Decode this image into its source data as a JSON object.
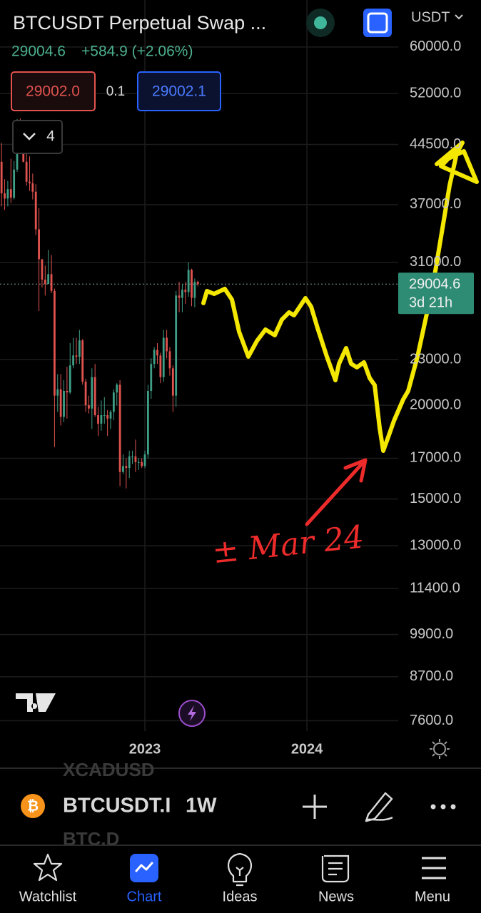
{
  "header": {
    "title": "BTCUSDT Perpetual Swap ...",
    "last_price": "29004.6",
    "change": "+584.9 (+2.06%)",
    "bid": "29002.0",
    "spread": "0.1",
    "ask": "29002.1",
    "indicators_count": "4",
    "currency": "USDT"
  },
  "chart_data": {
    "type": "candlestick",
    "open": [
      42200,
      38300,
      37700,
      38800,
      37800,
      41200,
      46800,
      46400,
      42200,
      39700,
      39500,
      38500,
      34300,
      31300,
      29400,
      29000,
      29900,
      28400,
      20600,
      21000,
      19300,
      20900,
      20800,
      22600,
      23300,
      23200,
      24400,
      21500,
      20000,
      19800,
      21800,
      19400,
      18900,
      19400,
      19400,
      19200,
      19600,
      20800,
      21300,
      16300,
      16600,
      16500,
      17100,
      17100,
      16800,
      16800,
      16600,
      17200,
      20900,
      22700,
      23700,
      23300,
      21800,
      24600,
      23600,
      22400,
      20600,
      28000,
      27800,
      28500,
      28300,
      30300,
      27800,
      29200
    ],
    "high": [
      44700,
      40000,
      39800,
      42600,
      42300,
      48100,
      48200,
      47200,
      43400,
      42900,
      40700,
      39400,
      36600,
      31300,
      30700,
      32200,
      31700,
      28600,
      22000,
      22000,
      21600,
      22500,
      24200,
      24600,
      24600,
      25200,
      24500,
      21700,
      20600,
      22400,
      22700,
      19900,
      20300,
      20500,
      19700,
      19700,
      21000,
      21400,
      21600,
      17200,
      17000,
      17400,
      17400,
      18000,
      17000,
      17000,
      17400,
      21300,
      23100,
      23900,
      24200,
      23500,
      25200,
      25200,
      23900,
      22600,
      28400,
      29200,
      29000,
      29200,
      31000,
      30400,
      29500,
      29300
    ],
    "low": [
      36800,
      36400,
      36800,
      37200,
      37600,
      40900,
      45400,
      42100,
      39200,
      38600,
      37600,
      33700,
      26700,
      28700,
      28000,
      29300,
      28200,
      17600,
      19600,
      18800,
      19000,
      19200,
      20700,
      22400,
      22700,
      22700,
      21300,
      19600,
      19500,
      18600,
      19300,
      18200,
      18500,
      18900,
      18200,
      18600,
      19100,
      20000,
      15600,
      16200,
      15500,
      16000,
      16700,
      16300,
      16400,
      16500,
      16500,
      17000,
      20400,
      22400,
      22700,
      21400,
      21500,
      23100,
      21900,
      19600,
      19900,
      26600,
      26600,
      27300,
      27900,
      27100,
      27000,
      28800
    ],
    "close": [
      38300,
      37700,
      38800,
      37800,
      41200,
      46800,
      46400,
      42200,
      39700,
      39500,
      38500,
      34300,
      31300,
      29400,
      29000,
      29900,
      28400,
      20600,
      21000,
      19300,
      20900,
      20800,
      22600,
      23300,
      23200,
      24400,
      21500,
      20000,
      19800,
      21800,
      19400,
      18900,
      19400,
      19400,
      19200,
      19600,
      20800,
      21300,
      16300,
      16600,
      16500,
      17100,
      17100,
      16800,
      16800,
      16600,
      17200,
      20900,
      22700,
      23700,
      23300,
      21800,
      24600,
      23600,
      22400,
      20600,
      28000,
      27800,
      28500,
      28300,
      30300,
      27800,
      29200,
      29004.6
    ],
    "up_color": "#3f9f86",
    "down_color": "#e0534f",
    "log_scale": true,
    "grid": true,
    "xlim": [
      -0.5,
      127.3
    ],
    "xticks": [
      {
        "value": 46,
        "label": "2023"
      },
      {
        "value": 98,
        "label": "2024"
      }
    ],
    "ylim": [
      6600,
      69300
    ],
    "yticks": [
      {
        "value": 60000,
        "label": "60000.0"
      },
      {
        "value": 52000,
        "label": "52000.0"
      },
      {
        "value": 44500,
        "label": "44500.0"
      },
      {
        "value": 37000,
        "label": "37000.0"
      },
      {
        "value": 31000,
        "label": "31000.0"
      },
      {
        "value": 23000,
        "label": "23000.0"
      },
      {
        "value": 20000,
        "label": "20000.0"
      },
      {
        "value": 17000,
        "label": "17000.0"
      },
      {
        "value": 15000,
        "label": "15000.0"
      },
      {
        "value": 13000,
        "label": "13000.0"
      },
      {
        "value": 11400,
        "label": "11400.0"
      },
      {
        "value": 9900,
        "label": "9900.0"
      },
      {
        "value": 8700,
        "label": "8700.0"
      },
      {
        "value": 7600,
        "label": "7600.0"
      }
    ],
    "last_price": 29004.6,
    "countdown": "3d 21h",
    "annotation": "± Mar 24"
  },
  "symbol_bar": {
    "previous": "XCADUSD",
    "symbol": "BTCUSDT.I",
    "interval": "1W",
    "next": "BTC.D"
  },
  "nav": [
    "Watchlist",
    "Chart",
    "Ideas",
    "News",
    "Menu"
  ]
}
